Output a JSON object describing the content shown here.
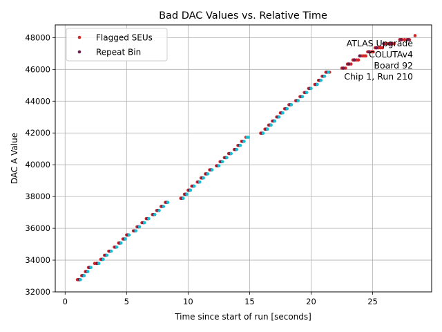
{
  "chart_data": {
    "type": "scatter",
    "title": "Bad DAC Values vs. Relative Time",
    "xlabel": "Time since start of run [seconds]",
    "ylabel": "DAC A Value",
    "xlim": [
      -0.8,
      29.8
    ],
    "ylim": [
      32000,
      48800
    ],
    "xticks": [
      0,
      5,
      10,
      15,
      20,
      25
    ],
    "yticks": [
      32000,
      34000,
      36000,
      38000,
      40000,
      42000,
      44000,
      46000,
      48000
    ],
    "grid": true,
    "legend_position": "top-left",
    "annotation_position": "top-right",
    "annotation": [
      "ATLAS Upgrade",
      "COLUTAv4",
      "Board 92",
      "Chip 1, Run 210"
    ],
    "series": [
      {
        "name": "Flagged SEUs",
        "color": "#d62728",
        "marker": "dot",
        "points": [
          [
            1.0,
            32768
          ],
          [
            1.1,
            32768
          ],
          [
            1.2,
            32768
          ],
          [
            1.35,
            33024
          ],
          [
            1.5,
            33024
          ],
          [
            1.65,
            33280
          ],
          [
            1.8,
            33280
          ],
          [
            1.9,
            33536
          ],
          [
            2.05,
            33536
          ],
          [
            2.4,
            33792
          ],
          [
            2.55,
            33792
          ],
          [
            2.7,
            33792
          ],
          [
            2.9,
            34048
          ],
          [
            3.05,
            34048
          ],
          [
            3.2,
            34304
          ],
          [
            3.35,
            34304
          ],
          [
            3.55,
            34560
          ],
          [
            3.7,
            34560
          ],
          [
            4.0,
            34816
          ],
          [
            4.15,
            34816
          ],
          [
            4.35,
            35072
          ],
          [
            4.5,
            35072
          ],
          [
            4.7,
            35328
          ],
          [
            4.85,
            35328
          ],
          [
            5.0,
            35584
          ],
          [
            5.15,
            35584
          ],
          [
            5.55,
            35840
          ],
          [
            5.7,
            35840
          ],
          [
            5.85,
            36096
          ],
          [
            6.0,
            36096
          ],
          [
            6.25,
            36352
          ],
          [
            6.4,
            36352
          ],
          [
            6.6,
            36608
          ],
          [
            6.75,
            36608
          ],
          [
            7.1,
            36864
          ],
          [
            7.25,
            36864
          ],
          [
            7.45,
            37120
          ],
          [
            7.6,
            37120
          ],
          [
            7.8,
            37376
          ],
          [
            7.95,
            37376
          ],
          [
            8.15,
            37632
          ],
          [
            8.3,
            37632
          ],
          [
            9.4,
            37888
          ],
          [
            9.55,
            37888
          ],
          [
            9.7,
            38144
          ],
          [
            9.85,
            38144
          ],
          [
            10.0,
            38400
          ],
          [
            10.15,
            38400
          ],
          [
            10.3,
            38656
          ],
          [
            10.45,
            38656
          ],
          [
            10.75,
            38912
          ],
          [
            10.9,
            38912
          ],
          [
            11.05,
            39168
          ],
          [
            11.2,
            39168
          ],
          [
            11.4,
            39424
          ],
          [
            11.55,
            39424
          ],
          [
            11.75,
            39680
          ],
          [
            11.9,
            39680
          ],
          [
            12.3,
            39936
          ],
          [
            12.45,
            39936
          ],
          [
            12.6,
            40192
          ],
          [
            12.75,
            40192
          ],
          [
            12.95,
            40448
          ],
          [
            13.1,
            40448
          ],
          [
            13.3,
            40704
          ],
          [
            13.45,
            40704
          ],
          [
            13.75,
            40960
          ],
          [
            13.9,
            40960
          ],
          [
            14.05,
            41216
          ],
          [
            14.2,
            41216
          ],
          [
            14.35,
            41472
          ],
          [
            14.5,
            41472
          ],
          [
            14.7,
            41728
          ],
          [
            15.9,
            41984
          ],
          [
            16.05,
            41984
          ],
          [
            16.25,
            42240
          ],
          [
            16.4,
            42240
          ],
          [
            16.55,
            42496
          ],
          [
            16.7,
            42496
          ],
          [
            16.85,
            42752
          ],
          [
            17.0,
            42752
          ],
          [
            17.2,
            43008
          ],
          [
            17.35,
            43008
          ],
          [
            17.5,
            43264
          ],
          [
            17.65,
            43264
          ],
          [
            17.85,
            43520
          ],
          [
            18.0,
            43520
          ],
          [
            18.2,
            43776
          ],
          [
            18.35,
            43776
          ],
          [
            18.75,
            44032
          ],
          [
            18.9,
            44032
          ],
          [
            19.1,
            44288
          ],
          [
            19.25,
            44288
          ],
          [
            19.45,
            44544
          ],
          [
            19.6,
            44544
          ],
          [
            19.8,
            44800
          ],
          [
            19.95,
            44800
          ],
          [
            20.3,
            45056
          ],
          [
            20.45,
            45056
          ],
          [
            20.6,
            45312
          ],
          [
            20.75,
            45312
          ],
          [
            20.9,
            45568
          ],
          [
            21.05,
            45568
          ],
          [
            21.2,
            45824
          ],
          [
            21.35,
            45824
          ],
          [
            21.5,
            45824
          ],
          [
            22.5,
            46080
          ],
          [
            22.65,
            46080
          ],
          [
            22.8,
            46080
          ],
          [
            22.95,
            46336
          ],
          [
            23.1,
            46336
          ],
          [
            23.25,
            46336
          ],
          [
            23.4,
            46592
          ],
          [
            23.55,
            46592
          ],
          [
            23.7,
            46592
          ],
          [
            23.85,
            46592
          ],
          [
            24.0,
            46848
          ],
          [
            24.15,
            46848
          ],
          [
            24.3,
            46848
          ],
          [
            24.45,
            46848
          ],
          [
            24.6,
            47104
          ],
          [
            24.75,
            47104
          ],
          [
            24.9,
            47104
          ],
          [
            25.05,
            47104
          ],
          [
            25.2,
            47360
          ],
          [
            25.35,
            47360
          ],
          [
            25.5,
            47360
          ],
          [
            25.65,
            47360
          ],
          [
            25.8,
            47360
          ],
          [
            26.0,
            47616
          ],
          [
            26.15,
            47616
          ],
          [
            26.3,
            47616
          ],
          [
            26.45,
            47616
          ],
          [
            26.6,
            47616
          ],
          [
            26.75,
            47616
          ],
          [
            27.2,
            47872
          ],
          [
            27.4,
            47872
          ],
          [
            27.6,
            47872
          ],
          [
            27.8,
            47872
          ],
          [
            28.0,
            47872
          ],
          [
            28.45,
            48128
          ]
        ]
      },
      {
        "name": "Repeat Bin",
        "color": "#6a1b4d",
        "marker": "dot",
        "points": [
          [
            1.15,
            32768
          ],
          [
            1.45,
            33024
          ],
          [
            1.75,
            33280
          ],
          [
            2.0,
            33536
          ],
          [
            2.6,
            33792
          ],
          [
            3.0,
            34048
          ],
          [
            3.3,
            34304
          ],
          [
            3.65,
            34560
          ],
          [
            4.1,
            34816
          ],
          [
            4.45,
            35072
          ],
          [
            4.8,
            35328
          ],
          [
            5.1,
            35584
          ],
          [
            5.65,
            35840
          ],
          [
            5.95,
            36096
          ],
          [
            6.35,
            36352
          ],
          [
            6.7,
            36608
          ],
          [
            7.2,
            36864
          ],
          [
            7.55,
            37120
          ],
          [
            7.9,
            37376
          ],
          [
            8.25,
            37632
          ],
          [
            9.5,
            37888
          ],
          [
            9.8,
            38144
          ],
          [
            10.1,
            38400
          ],
          [
            10.4,
            38656
          ],
          [
            10.85,
            38912
          ],
          [
            11.15,
            39168
          ],
          [
            11.5,
            39424
          ],
          [
            11.85,
            39680
          ],
          [
            12.4,
            39936
          ],
          [
            12.7,
            40192
          ],
          [
            13.05,
            40448
          ],
          [
            13.4,
            40704
          ],
          [
            13.85,
            40960
          ],
          [
            14.15,
            41216
          ],
          [
            14.45,
            41472
          ],
          [
            16.0,
            41984
          ],
          [
            16.35,
            42240
          ],
          [
            16.65,
            42496
          ],
          [
            16.95,
            42752
          ],
          [
            17.3,
            43008
          ],
          [
            17.6,
            43264
          ],
          [
            17.95,
            43520
          ],
          [
            18.3,
            43776
          ],
          [
            18.85,
            44032
          ],
          [
            19.2,
            44288
          ],
          [
            19.55,
            44544
          ],
          [
            19.9,
            44800
          ],
          [
            20.4,
            45056
          ],
          [
            20.7,
            45312
          ],
          [
            21.0,
            45568
          ],
          [
            21.3,
            45824
          ],
          [
            22.6,
            46080
          ],
          [
            23.05,
            46336
          ],
          [
            23.5,
            46592
          ],
          [
            23.95,
            46848
          ],
          [
            24.7,
            47104
          ],
          [
            25.3,
            47360
          ],
          [
            25.9,
            47616
          ],
          [
            26.5,
            47616
          ],
          [
            27.3,
            47872
          ],
          [
            27.9,
            47872
          ]
        ]
      },
      {
        "name": "",
        "color": "#17becf",
        "marker": "dot",
        "points": [
          [
            1.25,
            32768
          ],
          [
            1.55,
            33024
          ],
          [
            1.85,
            33280
          ],
          [
            2.1,
            33536
          ],
          [
            2.75,
            33792
          ],
          [
            3.1,
            34048
          ],
          [
            3.4,
            34304
          ],
          [
            3.75,
            34560
          ],
          [
            4.2,
            34816
          ],
          [
            4.55,
            35072
          ],
          [
            4.9,
            35328
          ],
          [
            5.2,
            35584
          ],
          [
            5.75,
            35840
          ],
          [
            6.05,
            36096
          ],
          [
            6.45,
            36352
          ],
          [
            6.8,
            36608
          ],
          [
            7.3,
            36864
          ],
          [
            7.65,
            37120
          ],
          [
            8.0,
            37376
          ],
          [
            8.35,
            37632
          ],
          [
            9.6,
            37888
          ],
          [
            9.9,
            38144
          ],
          [
            10.2,
            38400
          ],
          [
            10.5,
            38656
          ],
          [
            10.95,
            38912
          ],
          [
            11.25,
            39168
          ],
          [
            11.6,
            39424
          ],
          [
            11.95,
            39680
          ],
          [
            12.5,
            39936
          ],
          [
            12.8,
            40192
          ],
          [
            13.15,
            40448
          ],
          [
            13.5,
            40704
          ],
          [
            13.95,
            40960
          ],
          [
            14.25,
            41216
          ],
          [
            14.55,
            41472
          ],
          [
            14.8,
            41728
          ],
          [
            14.9,
            41728
          ],
          [
            16.1,
            41984
          ],
          [
            16.45,
            42240
          ],
          [
            16.75,
            42496
          ],
          [
            17.05,
            42752
          ],
          [
            17.4,
            43008
          ],
          [
            17.7,
            43264
          ],
          [
            18.05,
            43520
          ],
          [
            18.4,
            43776
          ],
          [
            18.95,
            44032
          ],
          [
            19.3,
            44288
          ],
          [
            19.65,
            44544
          ],
          [
            20.0,
            44800
          ],
          [
            20.5,
            45056
          ],
          [
            20.8,
            45312
          ],
          [
            21.1,
            45568
          ],
          [
            21.4,
            45824
          ]
        ]
      }
    ]
  }
}
